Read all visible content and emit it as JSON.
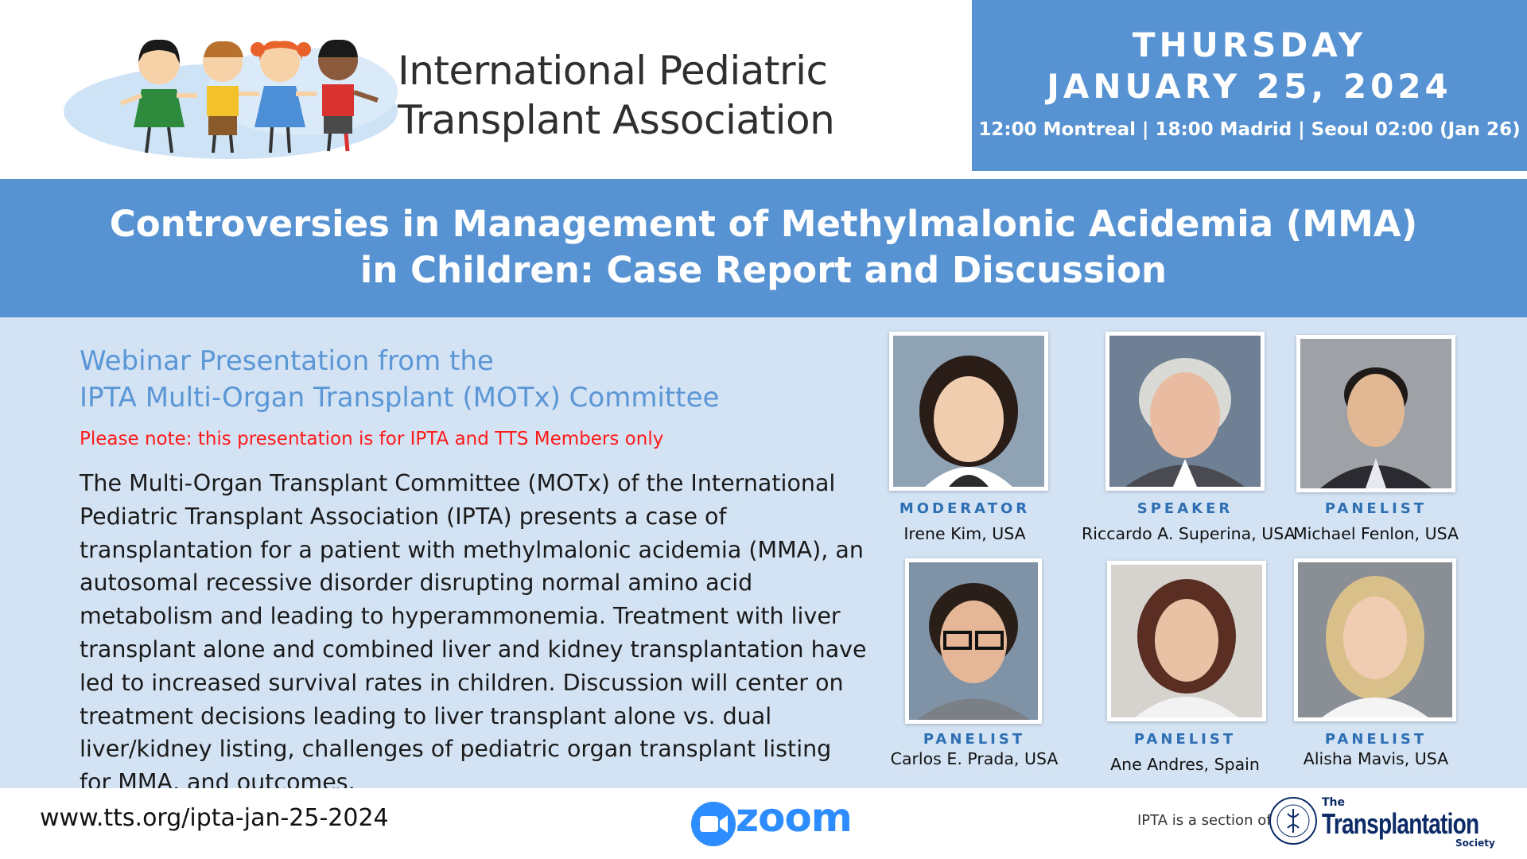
{
  "header": {
    "org_name_line1": "International Pediatric",
    "org_name_line2": "Transplant Association",
    "date_day": "THURSDAY",
    "date_full": "JANUARY 25, 2024",
    "times": "12:00 Montreal | 18:00 Madrid | Seoul 02:00 (Jan 26)"
  },
  "title": {
    "line1": "Controversies in Management of Methylmalonic Acidemia (MMA)",
    "line2": "in Children: Case Report and Discussion"
  },
  "main": {
    "subtitle_line1": "Webinar Presentation from the",
    "subtitle_line2": "IPTA Multi-Organ Transplant (MOTx) Committee",
    "members_note": "Please note: this presentation is for IPTA and TTS Members only",
    "description": "The Multi-Organ Transplant Committee (MOTx) of the International Pediatric Transplant Association (IPTA) presents a case of transplantation for a patient with methylmalonic acidemia (MMA), an autosomal recessive disorder disrupting normal amino acid metabolism and leading to hyperammonemia. Treatment with liver transplant alone and combined liver and kidney transplantation have led to increased survival rates in children. Discussion will center on treatment decisions leading to liver transplant alone vs. dual liver/kidney listing, challenges of pediatric organ transplant listing for MMA, and outcomes."
  },
  "people": [
    {
      "role": "MODERATOR",
      "name": "Irene Kim, USA"
    },
    {
      "role": "SPEAKER",
      "name": "Riccardo A. Superina, USA"
    },
    {
      "role": "PANELIST",
      "name": "Michael Fenlon, USA"
    },
    {
      "role": "PANELIST",
      "name": "Carlos E. Prada, USA"
    },
    {
      "role": "PANELIST",
      "name": "Ane Andres, Spain"
    },
    {
      "role": "PANELIST",
      "name": "Alisha Mavis, USA"
    }
  ],
  "footer": {
    "website": "www.tts.org/ipta-jan-25-2024",
    "zoom_label": "zoom",
    "section_of": "IPTA is a section of",
    "tts_the": "The",
    "tts_name": "Transplantation",
    "tts_society": "Society"
  },
  "colors": {
    "band_blue": "#5792d3",
    "light_blue": "#d3e3f4",
    "note_red": "#ff1a1a",
    "role_blue": "#2e6fb3",
    "zoom_blue": "#2d8cff"
  },
  "icons": {
    "logo": "children-holding-hands-logo",
    "zoom": "zoom-camera-icon",
    "tts": "tts-seal-icon"
  }
}
